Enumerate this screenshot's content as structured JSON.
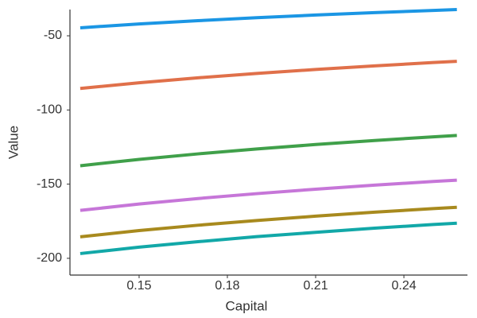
{
  "chart_data": {
    "type": "line",
    "xlabel": "Capital",
    "ylabel": "Value",
    "x": [
      0.13,
      0.15,
      0.17,
      0.19,
      0.21,
      0.23,
      0.25,
      0.258
    ],
    "series": [
      {
        "color": "#1b96e4",
        "values": [
          -44.6,
          -42.0,
          -39.8,
          -37.8,
          -36.0,
          -34.4,
          -32.9,
          -32.3
        ]
      },
      {
        "color": "#e0704a",
        "values": [
          -85.5,
          -81.7,
          -78.3,
          -75.4,
          -72.7,
          -70.3,
          -68.0,
          -67.2
        ]
      },
      {
        "color": "#40a04a",
        "values": [
          -137.6,
          -133.3,
          -129.6,
          -126.3,
          -123.3,
          -120.6,
          -118.1,
          -117.2
        ]
      },
      {
        "color": "#c676d8",
        "values": [
          -167.7,
          -163.4,
          -159.7,
          -156.4,
          -153.4,
          -150.7,
          -148.2,
          -147.3
        ]
      },
      {
        "color": "#a88a1e",
        "values": [
          -185.5,
          -181.3,
          -177.7,
          -174.5,
          -171.6,
          -168.9,
          -166.5,
          -165.6
        ]
      },
      {
        "color": "#12a8a8",
        "values": [
          -196.8,
          -192.5,
          -188.8,
          -185.4,
          -182.5,
          -179.7,
          -177.2,
          -176.3
        ]
      }
    ],
    "xlim": [
      0.1265,
      0.2616
    ],
    "ylim": [
      -211.3,
      -32.3
    ],
    "xticks": [
      0.15,
      0.18,
      0.21,
      0.24
    ],
    "yticks": [
      -200,
      -150,
      -100,
      -50
    ],
    "grid": false
  }
}
